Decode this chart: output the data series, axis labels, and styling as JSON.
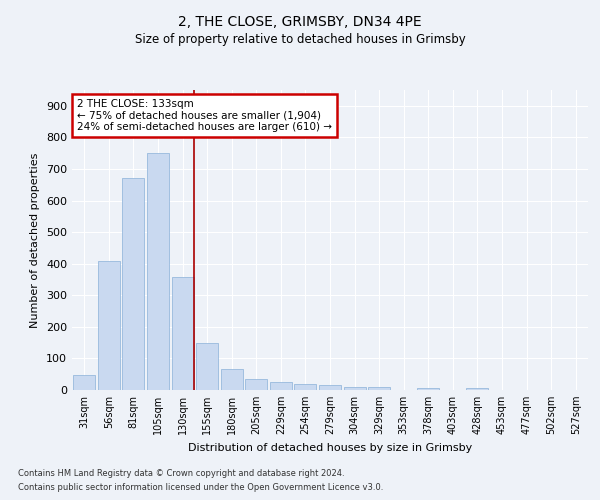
{
  "title1": "2, THE CLOSE, GRIMSBY, DN34 4PE",
  "title2": "Size of property relative to detached houses in Grimsby",
  "xlabel": "Distribution of detached houses by size in Grimsby",
  "ylabel": "Number of detached properties",
  "bar_labels": [
    "31sqm",
    "56sqm",
    "81sqm",
    "105sqm",
    "130sqm",
    "155sqm",
    "180sqm",
    "205sqm",
    "229sqm",
    "254sqm",
    "279sqm",
    "304sqm",
    "329sqm",
    "353sqm",
    "378sqm",
    "403sqm",
    "428sqm",
    "453sqm",
    "477sqm",
    "502sqm",
    "527sqm"
  ],
  "bar_values": [
    48,
    410,
    670,
    750,
    358,
    150,
    68,
    35,
    25,
    20,
    15,
    8,
    8,
    0,
    7,
    0,
    7,
    0,
    0,
    0,
    0
  ],
  "bar_color": "#c9d9f0",
  "bar_edge_color": "#8ab0d8",
  "vline_x": 4.45,
  "vline_color": "#aa0000",
  "annotation_line1": "2 THE CLOSE: 133sqm",
  "annotation_line2": "← 75% of detached houses are smaller (1,904)",
  "annotation_line3": "24% of semi-detached houses are larger (610) →",
  "annotation_box_edge": "#cc0000",
  "background_color": "#eef2f8",
  "grid_color": "#ffffff",
  "ylim": [
    0,
    950
  ],
  "yticks": [
    0,
    100,
    200,
    300,
    400,
    500,
    600,
    700,
    800,
    900
  ],
  "footnote1": "Contains HM Land Registry data © Crown copyright and database right 2024.",
  "footnote2": "Contains public sector information licensed under the Open Government Licence v3.0."
}
